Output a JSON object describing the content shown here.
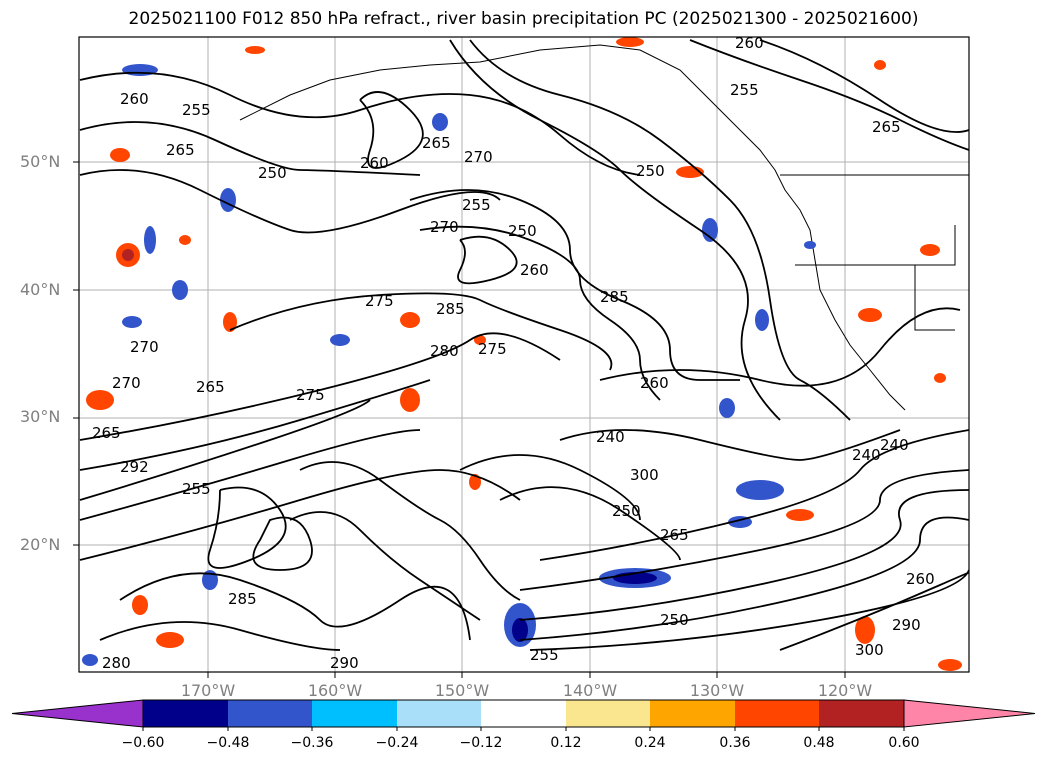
{
  "title": "2025021100 F012 850 hPa refract., river basin precipitation PC (2025021300 - 2025021600)",
  "map": {
    "lat_labels": [
      "50°N",
      "40°N",
      "30°N",
      "20°N"
    ],
    "lon_labels": [
      "170°W",
      "160°W",
      "150°W",
      "140°W",
      "130°W",
      "120°W"
    ],
    "contour_labels": [
      "260",
      "255",
      "265",
      "250",
      "260",
      "265",
      "270",
      "255",
      "250",
      "270",
      "260",
      "275",
      "285",
      "285",
      "270",
      "265",
      "280",
      "275",
      "260",
      "240",
      "265",
      "270",
      "292",
      "275",
      "255",
      "240",
      "250",
      "300",
      "265",
      "260",
      "290",
      "290",
      "300",
      "280",
      "250",
      "255",
      "285",
      "240",
      "265",
      "260",
      "255",
      "250"
    ]
  },
  "colorbar": {
    "tick_labels": [
      "−0.60",
      "−0.48",
      "−0.36",
      "−0.24",
      "−0.12",
      "0.12",
      "0.24",
      "0.36",
      "0.48",
      "0.60"
    ],
    "colors": [
      "#9932cc",
      "#00008b",
      "#3355cc",
      "#00bfff",
      "#aadffa",
      "#ffffff",
      "#fbe690",
      "#ffa500",
      "#ff4500",
      "#b22222",
      "#ff85a8"
    ]
  }
}
